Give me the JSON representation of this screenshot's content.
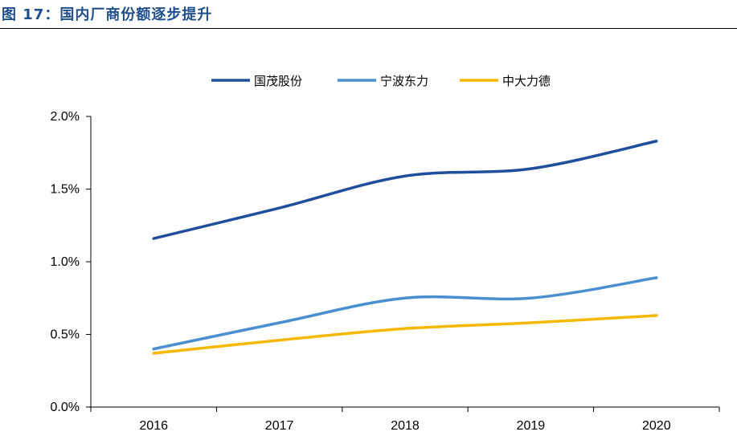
{
  "figure_title": "图 17：国内厂商份额逐步提升",
  "chart_data": {
    "type": "line",
    "title": "",
    "xlabel": "",
    "ylabel": "",
    "categories": [
      "2016",
      "2017",
      "2018",
      "2019",
      "2020"
    ],
    "ylim": [
      0,
      2.0
    ],
    "yticks": [
      "0.0%",
      "0.5%",
      "1.0%",
      "1.5%",
      "2.0%"
    ],
    "legend_position": "top-center",
    "grid": false,
    "series": [
      {
        "name": "国茂股份",
        "color": "#1f4e9c",
        "values": [
          1.16,
          1.37,
          1.59,
          1.64,
          1.83
        ]
      },
      {
        "name": "宁波东力",
        "color": "#4a8fd0",
        "values": [
          0.4,
          0.58,
          0.75,
          0.75,
          0.89
        ]
      },
      {
        "name": "中大力德",
        "color": "#f5b800",
        "values": [
          0.37,
          0.46,
          0.54,
          0.58,
          0.63
        ]
      }
    ]
  }
}
